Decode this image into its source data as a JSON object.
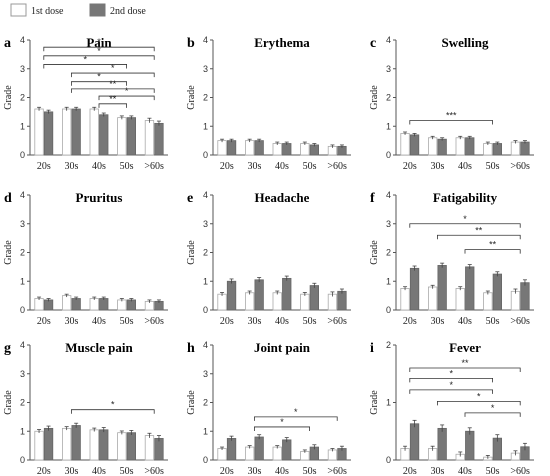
{
  "legend": {
    "first_dose_label": "1st dose",
    "second_dose_label": "2nd dose",
    "first_dose_color": "#ffffff",
    "second_dose_color": "#777777"
  },
  "chart_data": [
    {
      "letter": "a",
      "title": "Pain",
      "type": "bar",
      "ylabel": "Grade",
      "ylim": [
        0,
        4
      ],
      "yticks": [
        0,
        1,
        2,
        3,
        4
      ],
      "categories": [
        "20s",
        "30s",
        "40s",
        "50s",
        ">60s"
      ],
      "series": [
        {
          "name": "1st dose",
          "values": [
            1.6,
            1.6,
            1.6,
            1.3,
            1.2
          ],
          "errors": [
            0.06,
            0.06,
            0.06,
            0.06,
            0.08
          ]
        },
        {
          "name": "2nd dose",
          "values": [
            1.5,
            1.6,
            1.4,
            1.3,
            1.1
          ],
          "errors": [
            0.06,
            0.06,
            0.06,
            0.06,
            0.08
          ]
        }
      ],
      "significance": [
        {
          "from": 0,
          "to": 4,
          "level": 3.75,
          "label": "*"
        },
        {
          "from": 0,
          "to": 4,
          "level": 3.45,
          "label": "*"
        },
        {
          "from": 0,
          "to": 3,
          "level": 3.15,
          "label": "*"
        },
        {
          "from": 1,
          "to": 4,
          "level": 2.85,
          "label": "*"
        },
        {
          "from": 1,
          "to": 3,
          "level": 2.55,
          "label": "*"
        },
        {
          "from": 1,
          "to": 4,
          "level": 2.3,
          "label": "**"
        },
        {
          "from": 2,
          "to": 4,
          "level": 2.05,
          "label": "*"
        },
        {
          "from": 2,
          "to": 3,
          "level": 1.78,
          "label": "**"
        }
      ]
    },
    {
      "letter": "b",
      "title": "Erythema",
      "type": "bar",
      "ylabel": "Grade",
      "ylim": [
        0,
        4
      ],
      "yticks": [
        0,
        1,
        2,
        3,
        4
      ],
      "categories": [
        "20s",
        "30s",
        "40s",
        "50s",
        ">60s"
      ],
      "series": [
        {
          "name": "1st dose",
          "values": [
            0.5,
            0.5,
            0.4,
            0.4,
            0.3
          ],
          "errors": [
            0.05,
            0.05,
            0.05,
            0.05,
            0.05
          ]
        },
        {
          "name": "2nd dose",
          "values": [
            0.5,
            0.5,
            0.4,
            0.35,
            0.3
          ],
          "errors": [
            0.05,
            0.05,
            0.05,
            0.05,
            0.05
          ]
        }
      ],
      "significance": []
    },
    {
      "letter": "c",
      "title": "Swelling",
      "type": "bar",
      "ylabel": "Grade",
      "ylim": [
        0,
        4
      ],
      "yticks": [
        0,
        1,
        2,
        3,
        4
      ],
      "categories": [
        "20s",
        "30s",
        "40s",
        "50s",
        ">60s"
      ],
      "series": [
        {
          "name": "1st dose",
          "values": [
            0.75,
            0.6,
            0.6,
            0.4,
            0.45
          ],
          "errors": [
            0.05,
            0.05,
            0.05,
            0.05,
            0.05
          ]
        },
        {
          "name": "2nd dose",
          "values": [
            0.7,
            0.55,
            0.6,
            0.4,
            0.45
          ],
          "errors": [
            0.05,
            0.05,
            0.05,
            0.05,
            0.05
          ]
        }
      ],
      "significance": [
        {
          "from": 0,
          "to": 3,
          "level": 1.2,
          "label": "***"
        }
      ]
    },
    {
      "letter": "d",
      "title": "Pruritus",
      "type": "bar",
      "ylabel": "Grade",
      "ylim": [
        0,
        4
      ],
      "yticks": [
        0,
        1,
        2,
        3,
        4
      ],
      "categories": [
        "20s",
        "30s",
        "40s",
        "50s",
        ">60s"
      ],
      "series": [
        {
          "name": "1st dose",
          "values": [
            0.4,
            0.5,
            0.4,
            0.35,
            0.3
          ],
          "errors": [
            0.05,
            0.05,
            0.05,
            0.05,
            0.05
          ]
        },
        {
          "name": "2nd dose",
          "values": [
            0.35,
            0.4,
            0.4,
            0.35,
            0.3
          ],
          "errors": [
            0.05,
            0.05,
            0.05,
            0.05,
            0.05
          ]
        }
      ],
      "significance": []
    },
    {
      "letter": "e",
      "title": "Headache",
      "type": "bar",
      "ylabel": "Grade",
      "ylim": [
        0,
        4
      ],
      "yticks": [
        0,
        1,
        2,
        3,
        4
      ],
      "categories": [
        "20s",
        "30s",
        "40s",
        "50s",
        ">60s"
      ],
      "series": [
        {
          "name": "1st dose",
          "values": [
            0.55,
            0.6,
            0.6,
            0.55,
            0.55
          ],
          "errors": [
            0.06,
            0.06,
            0.06,
            0.06,
            0.08
          ]
        },
        {
          "name": "2nd dose",
          "values": [
            1.0,
            1.05,
            1.1,
            0.85,
            0.65
          ],
          "errors": [
            0.08,
            0.08,
            0.08,
            0.08,
            0.08
          ]
        }
      ],
      "significance": []
    },
    {
      "letter": "f",
      "title": "Fatigability",
      "type": "bar",
      "ylabel": "Grade",
      "ylim": [
        0,
        4
      ],
      "yticks": [
        0,
        1,
        2,
        3,
        4
      ],
      "categories": [
        "20s",
        "30s",
        "40s",
        "50s",
        ">60s"
      ],
      "series": [
        {
          "name": "1st dose",
          "values": [
            0.75,
            0.8,
            0.75,
            0.6,
            0.65
          ],
          "errors": [
            0.06,
            0.06,
            0.06,
            0.06,
            0.08
          ]
        },
        {
          "name": "2nd dose",
          "values": [
            1.45,
            1.55,
            1.5,
            1.25,
            0.95
          ],
          "errors": [
            0.08,
            0.08,
            0.08,
            0.08,
            0.1
          ]
        }
      ],
      "significance": [
        {
          "from": 0,
          "to": 4,
          "level": 3.0,
          "label": "*"
        },
        {
          "from": 1,
          "to": 4,
          "level": 2.6,
          "label": "**"
        },
        {
          "from": 2,
          "to": 4,
          "level": 2.1,
          "label": "**"
        }
      ]
    },
    {
      "letter": "g",
      "title": "Muscle pain",
      "type": "bar",
      "ylabel": "Grade",
      "ylim": [
        0,
        4
      ],
      "yticks": [
        0,
        1,
        2,
        3,
        4
      ],
      "categories": [
        "20s",
        "30s",
        "40s",
        "50s",
        ">60s"
      ],
      "series": [
        {
          "name": "1st dose",
          "values": [
            1.0,
            1.1,
            1.05,
            0.95,
            0.85
          ],
          "errors": [
            0.06,
            0.06,
            0.06,
            0.06,
            0.08
          ]
        },
        {
          "name": "2nd dose",
          "values": [
            1.1,
            1.2,
            1.05,
            0.95,
            0.75
          ],
          "errors": [
            0.08,
            0.08,
            0.08,
            0.08,
            0.1
          ]
        }
      ],
      "significance": [
        {
          "from": 1,
          "to": 4,
          "level": 1.75,
          "label": "*"
        }
      ]
    },
    {
      "letter": "h",
      "title": "Joint pain",
      "type": "bar",
      "ylabel": "Grade",
      "ylim": [
        0,
        4
      ],
      "yticks": [
        0,
        1,
        2,
        3,
        4
      ],
      "categories": [
        "20s",
        "30s",
        "40s",
        "50s",
        ">60s"
      ],
      "series": [
        {
          "name": "1st dose",
          "values": [
            0.4,
            0.45,
            0.45,
            0.3,
            0.35
          ],
          "errors": [
            0.05,
            0.05,
            0.05,
            0.05,
            0.05
          ]
        },
        {
          "name": "2nd dose",
          "values": [
            0.75,
            0.8,
            0.7,
            0.45,
            0.4
          ],
          "errors": [
            0.08,
            0.08,
            0.08,
            0.08,
            0.08
          ]
        }
      ],
      "significance": [
        {
          "from": 1,
          "to": 4,
          "level": 1.5,
          "label": "*"
        },
        {
          "from": 1,
          "to": 3,
          "level": 1.15,
          "label": "*"
        }
      ]
    },
    {
      "letter": "i",
      "title": "Fever",
      "type": "bar",
      "ylabel": "Grade",
      "ylim": [
        0,
        2
      ],
      "yticks": [
        0,
        1,
        2
      ],
      "categories": [
        "20s",
        "30s",
        "40s",
        "50s",
        ">60s"
      ],
      "series": [
        {
          "name": "1st dose",
          "values": [
            0.2,
            0.2,
            0.1,
            0.05,
            0.12
          ],
          "errors": [
            0.04,
            0.04,
            0.04,
            0.03,
            0.04
          ]
        },
        {
          "name": "2nd dose",
          "values": [
            0.63,
            0.55,
            0.5,
            0.38,
            0.23
          ],
          "errors": [
            0.06,
            0.06,
            0.06,
            0.06,
            0.06
          ]
        }
      ],
      "significance": [
        {
          "from": 0,
          "to": 4,
          "level": 1.6,
          "label": "**"
        },
        {
          "from": 0,
          "to": 3,
          "level": 1.42,
          "label": "*"
        },
        {
          "from": 0,
          "to": 3,
          "level": 1.22,
          "label": "*"
        },
        {
          "from": 1,
          "to": 4,
          "level": 1.02,
          "label": "*"
        },
        {
          "from": 2,
          "to": 4,
          "level": 0.82,
          "label": "*"
        }
      ]
    }
  ]
}
